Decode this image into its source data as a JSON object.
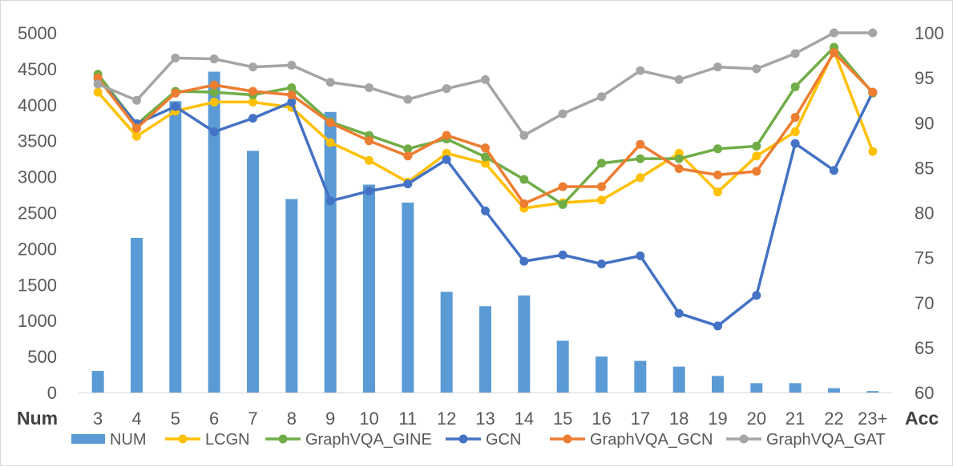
{
  "chart_data": {
    "type": "bar+line",
    "categories": [
      "3",
      "4",
      "5",
      "6",
      "7",
      "8",
      "9",
      "10",
      "11",
      "12",
      "13",
      "14",
      "15",
      "16",
      "17",
      "18",
      "19",
      "20",
      "21",
      "22",
      "23+"
    ],
    "left_axis": {
      "label": "Num",
      "range": [
        0,
        5000
      ],
      "ticks": [
        0,
        500,
        1000,
        1500,
        2000,
        2500,
        3000,
        3500,
        4000,
        4500,
        5000
      ]
    },
    "right_axis": {
      "label": "Acc",
      "range": [
        60,
        100
      ],
      "ticks": [
        60,
        65,
        70,
        75,
        80,
        85,
        90,
        95,
        100
      ]
    },
    "bars": {
      "name": "NUM",
      "color": "#5b9bd5",
      "values": [
        300,
        2150,
        4050,
        4460,
        3360,
        2690,
        3900,
        2890,
        2640,
        1400,
        1200,
        1350,
        720,
        500,
        440,
        360,
        230,
        130,
        130,
        60,
        20
      ]
    },
    "series": [
      {
        "name": "LCGN",
        "color": "#ffc000",
        "values": [
          93.4,
          88.5,
          91.3,
          92.3,
          92.3,
          91.7,
          87.8,
          85.8,
          83.4,
          86.6,
          85.5,
          80.5,
          81.1,
          81.4,
          83.9,
          86.6,
          82.3,
          86.3,
          89.0,
          98.0,
          86.8
        ]
      },
      {
        "name": "GraphVQA_GINE",
        "color": "#70ad47",
        "values": [
          95.4,
          89.8,
          93.5,
          93.4,
          93.1,
          93.9,
          90.1,
          88.6,
          87.1,
          88.2,
          86.2,
          83.7,
          80.9,
          85.5,
          86.0,
          86.0,
          87.1,
          87.4,
          94.0,
          98.4,
          93.3
        ]
      },
      {
        "name": "GCN",
        "color": "#4472c4",
        "values": [
          94.9,
          89.9,
          91.8,
          89.0,
          90.5,
          92.3,
          81.3,
          82.4,
          83.2,
          85.9,
          80.2,
          74.6,
          75.3,
          74.3,
          75.2,
          68.8,
          67.4,
          70.8,
          87.7,
          84.7,
          93.4
        ]
      },
      {
        "name": "GraphVQA_GCN",
        "color": "#ed7d31",
        "values": [
          95.0,
          89.4,
          93.3,
          94.2,
          93.5,
          93.1,
          90.0,
          88.0,
          86.3,
          88.6,
          87.2,
          81.0,
          82.9,
          82.9,
          87.6,
          84.9,
          84.2,
          84.6,
          90.6,
          97.8,
          93.4
        ]
      },
      {
        "name": "GraphVQA_GAT",
        "color": "#a5a5a5",
        "values": [
          94.3,
          92.5,
          97.2,
          97.1,
          96.2,
          96.4,
          94.5,
          93.9,
          92.6,
          93.8,
          94.8,
          88.6,
          91.0,
          92.9,
          95.8,
          94.8,
          96.2,
          96.0,
          97.7,
          100.0,
          100.0
        ]
      }
    ],
    "legend": {
      "placement": "bottom",
      "entries": [
        "NUM",
        "LCGN",
        "GraphVQA_GINE",
        "GCN",
        "GraphVQA_GCN",
        "GraphVQA_GAT"
      ]
    },
    "grid": false,
    "title": ""
  }
}
